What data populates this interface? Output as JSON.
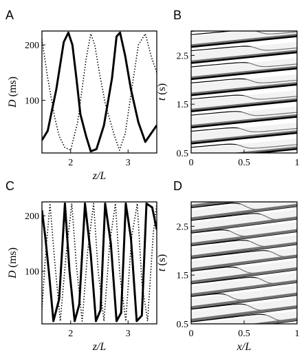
{
  "chart_data": [
    {
      "panel": "A",
      "type": "line",
      "xlabel_var": "z/L",
      "ylabel_var": "D",
      "ylabel_unit": "(ms)",
      "xlim": [
        1.5,
        3.5
      ],
      "ylim": [
        5,
        225
      ],
      "xticks": [
        2,
        3
      ],
      "yticks": [
        100,
        200
      ],
      "series": [
        {
          "style": "solid",
          "x": [
            1.5,
            1.6,
            1.75,
            1.88,
            1.96,
            2.03,
            2.1,
            2.17,
            2.27,
            2.35,
            2.45,
            2.58,
            2.72,
            2.8,
            2.86,
            2.95,
            3.05,
            3.18,
            3.3,
            3.5
          ],
          "y": [
            28,
            45,
            120,
            205,
            222,
            200,
            140,
            75,
            35,
            8,
            12,
            55,
            140,
            215,
            222,
            180,
            120,
            60,
            25,
            55
          ]
        },
        {
          "style": "dotted",
          "x": [
            1.5,
            1.6,
            1.72,
            1.8,
            1.9,
            2.0,
            2.12,
            2.27,
            2.35,
            2.42,
            2.5,
            2.6,
            2.75,
            2.85,
            2.95,
            3.05,
            3.18,
            3.3,
            3.4,
            3.5
          ],
          "y": [
            210,
            140,
            70,
            35,
            15,
            10,
            60,
            175,
            220,
            200,
            150,
            95,
            40,
            10,
            40,
            110,
            200,
            220,
            180,
            150
          ]
        }
      ]
    },
    {
      "panel": "B",
      "type": "line",
      "xlabel_var": "",
      "ylabel_var": "t",
      "ylabel_unit": "(s)",
      "xlim": [
        0,
        1
      ],
      "ylim": [
        0.5,
        3.0
      ],
      "xticks": [
        0,
        0.5,
        1
      ],
      "xticklabels": [
        "0",
        "0.5",
        "1"
      ],
      "yticks": [
        0.5,
        1.5,
        2.5
      ],
      "yticklabels": [
        "0.5",
        "1.5",
        "2.5"
      ]
    },
    {
      "panel": "C",
      "type": "line",
      "xlabel_var": "z/L",
      "ylabel_var": "D",
      "ylabel_unit": "(ms)",
      "xlim": [
        1.5,
        3.5
      ],
      "ylim": [
        5,
        225
      ],
      "xticks": [
        2,
        3
      ],
      "yticks": [
        100,
        200
      ],
      "series": [
        {
          "style": "solid",
          "x": [
            1.5,
            1.56,
            1.62,
            1.7,
            1.8,
            1.9,
            1.98,
            2.07,
            2.15,
            2.25,
            2.35,
            2.44,
            2.52,
            2.6,
            2.7,
            2.8,
            2.88,
            2.96,
            3.05,
            3.15,
            3.24,
            3.32,
            3.42,
            3.5
          ],
          "y": [
            210,
            160,
            100,
            10,
            50,
            222,
            100,
            10,
            40,
            222,
            130,
            10,
            30,
            222,
            150,
            10,
            25,
            222,
            160,
            10,
            20,
            222,
            215,
            175
          ]
        },
        {
          "style": "dotted",
          "x": [
            1.5,
            1.56,
            1.64,
            1.72,
            1.82,
            1.92,
            2.02,
            2.1,
            2.2,
            2.3,
            2.4,
            2.48,
            2.58,
            2.68,
            2.78,
            2.86,
            2.96,
            3.06,
            3.16,
            3.24,
            3.34,
            3.44,
            3.5
          ],
          "y": [
            30,
            125,
            222,
            120,
            10,
            130,
            222,
            110,
            10,
            140,
            222,
            100,
            10,
            150,
            222,
            90,
            10,
            160,
            222,
            80,
            10,
            170,
            222
          ]
        }
      ]
    },
    {
      "panel": "D",
      "type": "line",
      "xlabel_var": "x/L",
      "ylabel_var": "t",
      "ylabel_unit": "(s)",
      "xlim": [
        0,
        1
      ],
      "ylim": [
        0.5,
        3.0
      ],
      "xticks": [
        0,
        0.5,
        1
      ],
      "xticklabels": [
        "0",
        "0.5",
        "1"
      ],
      "yticks": [
        0.5,
        1.5,
        2.5
      ],
      "yticklabels": [
        "0.5",
        "1.5",
        "2.5"
      ]
    }
  ]
}
